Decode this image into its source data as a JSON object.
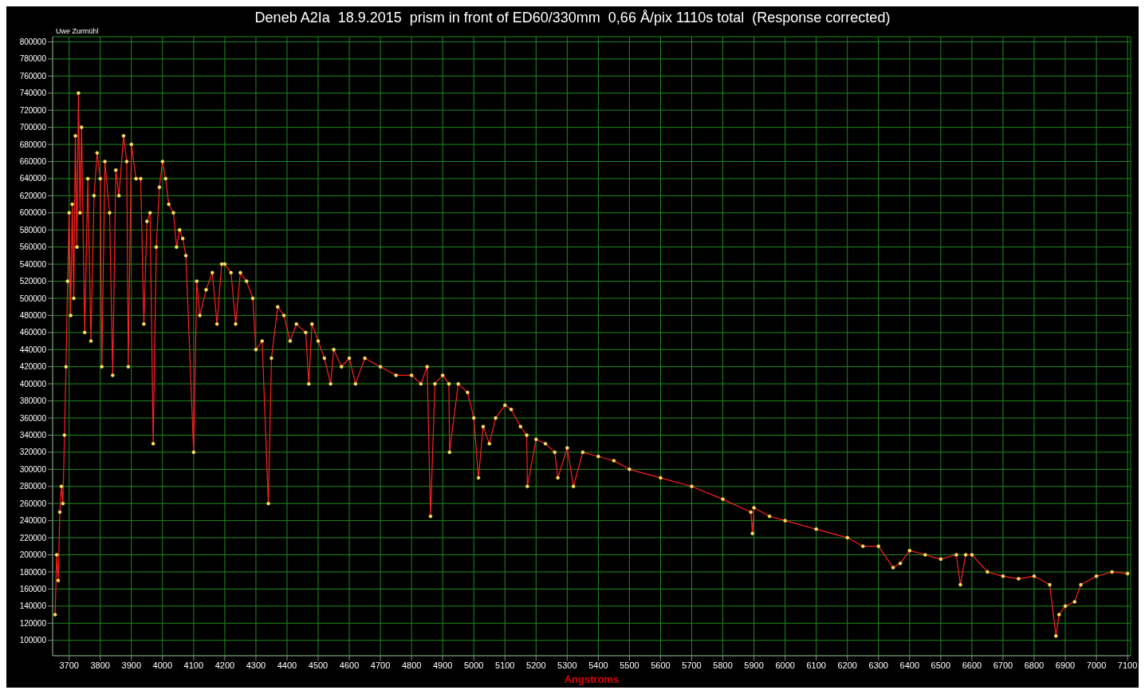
{
  "chart_data": {
    "type": "line",
    "title": "Deneb A2Ia  18.9.2015  prism in front of ED60/330mm  0,66 Å/pix 1110s total  (Response corrected)",
    "xlabel": "Angstroms",
    "annotations": [
      "Uwe Zurmühl"
    ],
    "x": [
      3655,
      3660,
      3665,
      3670,
      3675,
      3680,
      3685,
      3690,
      3695,
      3700,
      3705,
      3710,
      3715,
      3720,
      3725,
      3730,
      3735,
      3740,
      3750,
      3760,
      3770,
      3780,
      3790,
      3800,
      3805,
      3815,
      3830,
      3840,
      3850,
      3860,
      3875,
      3885,
      3890,
      3900,
      3915,
      3930,
      3940,
      3950,
      3960,
      3970,
      3980,
      3990,
      4000,
      4010,
      4020,
      4035,
      4045,
      4055,
      4065,
      4075,
      4100,
      4110,
      4120,
      4140,
      4160,
      4175,
      4190,
      4200,
      4220,
      4235,
      4250,
      4270,
      4290,
      4300,
      4320,
      4340,
      4350,
      4370,
      4390,
      4410,
      4430,
      4460,
      4470,
      4480,
      4500,
      4520,
      4540,
      4550,
      4575,
      4600,
      4620,
      4650,
      4700,
      4750,
      4800,
      4830,
      4850,
      4861,
      4875,
      4900,
      4920,
      4922,
      4950,
      4980,
      5000,
      5015,
      5030,
      5050,
      5070,
      5100,
      5120,
      5150,
      5170,
      5172,
      5200,
      5230,
      5260,
      5270,
      5300,
      5320,
      5350,
      5400,
      5450,
      5500,
      5600,
      5700,
      5800,
      5890,
      5895,
      5900,
      5950,
      6000,
      6100,
      6200,
      6250,
      6300,
      6347,
      6370,
      6400,
      6450,
      6500,
      6550,
      6563,
      6580,
      6600,
      6650,
      6700,
      6750,
      6800,
      6850,
      6870,
      6880,
      6900,
      6930,
      6950,
      7000,
      7050,
      7100
    ],
    "series": [
      {
        "color": "#ff2020",
        "values": [
          130000,
          200000,
          170000,
          250000,
          280000,
          260000,
          340000,
          420000,
          520000,
          600000,
          480000,
          610000,
          500000,
          690000,
          560000,
          740000,
          600000,
          700000,
          460000,
          640000,
          450000,
          620000,
          670000,
          640000,
          420000,
          660000,
          600000,
          410000,
          650000,
          620000,
          690000,
          660000,
          420000,
          680000,
          640000,
          640000,
          470000,
          590000,
          600000,
          330000,
          560000,
          630000,
          660000,
          640000,
          610000,
          600000,
          560000,
          580000,
          570000,
          550000,
          320000,
          520000,
          480000,
          510000,
          530000,
          470000,
          540000,
          540000,
          530000,
          470000,
          530000,
          520000,
          500000,
          440000,
          450000,
          260000,
          430000,
          490000,
          480000,
          450000,
          470000,
          460000,
          400000,
          470000,
          450000,
          430000,
          400000,
          440000,
          420000,
          430000,
          400000,
          430000,
          420000,
          410000,
          410000,
          400000,
          420000,
          245000,
          400000,
          410000,
          400000,
          320000,
          400000,
          390000,
          360000,
          290000,
          350000,
          330000,
          360000,
          375000,
          370000,
          350000,
          340000,
          280000,
          335000,
          330000,
          320000,
          290000,
          325000,
          280000,
          320000,
          315000,
          310000,
          300000,
          290000,
          280000,
          265000,
          250000,
          225000,
          255000,
          245000,
          240000,
          230000,
          220000,
          210000,
          210000,
          185000,
          190000,
          205000,
          200000,
          195000,
          200000,
          165000,
          200000,
          200000,
          180000,
          175000,
          172000,
          175000,
          165000,
          105000,
          130000,
          140000,
          145000,
          165000,
          175000,
          180000,
          178000
        ]
      }
    ],
    "xlim": [
      3647,
      7110
    ],
    "xticks": [
      3700,
      3800,
      3900,
      4000,
      4100,
      4200,
      4300,
      4400,
      4500,
      4600,
      4700,
      4800,
      4900,
      5000,
      5100,
      5200,
      5300,
      5400,
      5500,
      5600,
      5700,
      5800,
      5900,
      6000,
      6100,
      6200,
      6300,
      6400,
      6500,
      6600,
      6700,
      6800,
      6900,
      7000,
      7100
    ],
    "ylim": [
      82000,
      806000
    ],
    "yticks": [
      100000,
      120000,
      140000,
      160000,
      180000,
      200000,
      220000,
      240000,
      260000,
      280000,
      300000,
      320000,
      340000,
      360000,
      380000,
      400000,
      420000,
      440000,
      460000,
      480000,
      500000,
      520000,
      540000,
      560000,
      580000,
      600000,
      620000,
      640000,
      660000,
      680000,
      700000,
      720000,
      740000,
      760000,
      780000,
      800000
    ],
    "grid": true,
    "marker": "circle",
    "line_style": "solid"
  }
}
